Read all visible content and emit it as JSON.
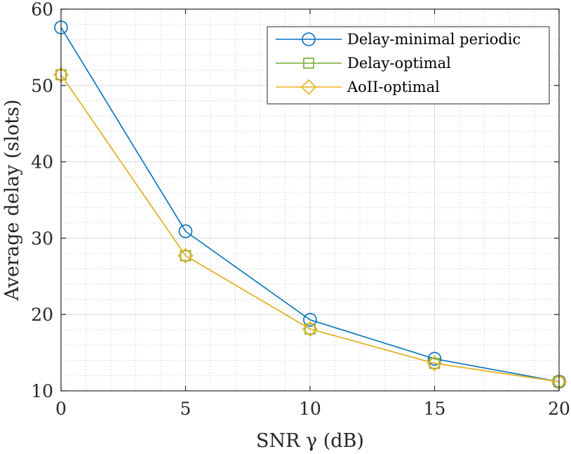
{
  "chart_data": {
    "type": "line",
    "x": [
      0,
      5,
      10,
      15,
      20
    ],
    "series": [
      {
        "name": "Delay-minimal periodic",
        "values": [
          57.6,
          30.9,
          19.3,
          14.2,
          11.2
        ],
        "color": "#0072BD",
        "marker": "circle"
      },
      {
        "name": "Delay-optimal",
        "values": [
          51.4,
          27.7,
          18.1,
          13.6,
          11.2
        ],
        "color": "#77AC30",
        "marker": "square"
      },
      {
        "name": "AoII-optimal",
        "values": [
          51.4,
          27.7,
          18.1,
          13.6,
          11.2
        ],
        "color": "#EDB120",
        "marker": "diamond"
      }
    ],
    "xlabel": "SNR γ (dB)",
    "ylabel": "Average delay (slots)",
    "xlim": [
      0,
      20
    ],
    "ylim": [
      10,
      60
    ],
    "xticks": [
      "0",
      "5",
      "10",
      "15",
      "20"
    ],
    "yticks": [
      "10",
      "20",
      "30",
      "40",
      "50",
      "60"
    ],
    "xtick_values": [
      0,
      5,
      10,
      15,
      20
    ],
    "ytick_values": [
      10,
      20,
      30,
      40,
      50,
      60
    ],
    "grid": true,
    "minor_grid": true,
    "legend": "top-right"
  }
}
